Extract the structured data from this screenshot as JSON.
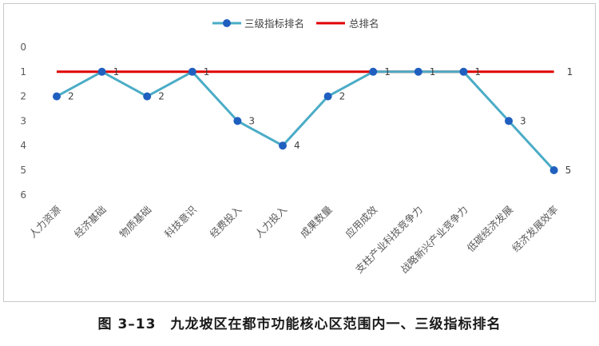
{
  "chart_data": {
    "type": "line",
    "categories": [
      "人力资源",
      "经济基础",
      "物质基础",
      "科技意识",
      "经费投入",
      "人力投入",
      "成果数量",
      "应用成效",
      "支柱产业科技竞争力",
      "战略新兴产业竞争力",
      "低碳经济发展",
      "经济发展效率"
    ],
    "series": [
      {
        "name": "三级指标排名",
        "values": [
          2,
          1,
          2,
          1,
          3,
          4,
          2,
          1,
          1,
          1,
          3,
          5
        ],
        "color": "#4bacc6"
      },
      {
        "name": "总排名",
        "values": [
          1,
          1,
          1,
          1,
          1,
          1,
          1,
          1,
          1,
          1,
          1,
          1
        ],
        "color": "#e00000"
      }
    ],
    "ylim": [
      0,
      6
    ],
    "yticks": [
      "0",
      "1",
      "2",
      "3",
      "4",
      "5",
      "6"
    ],
    "y_reversed": true,
    "total_label": "1",
    "legend_position": "top-center",
    "grid": false
  },
  "caption": "图 3–13　九龙坡区在都市功能核心区范围内一、三级指标排名"
}
